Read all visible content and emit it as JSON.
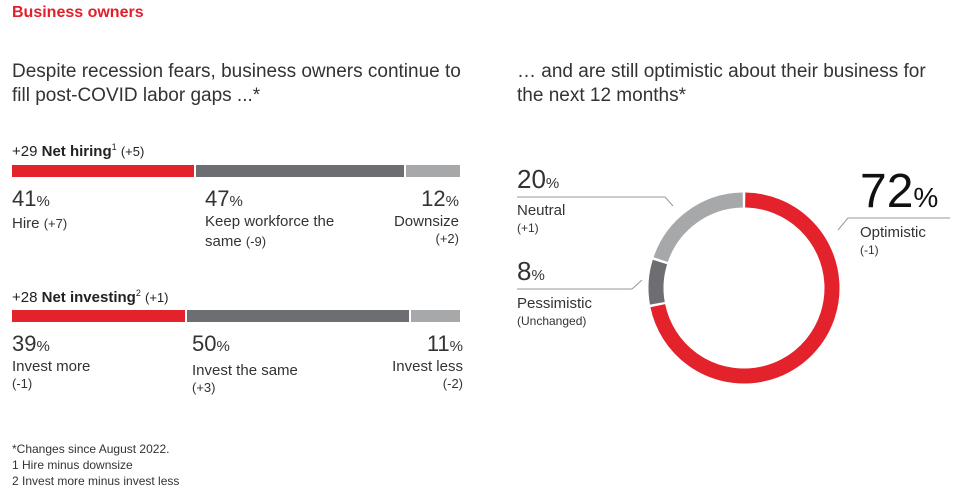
{
  "section_title": "Business owners",
  "left_heading": "Despite recession fears, business owners continue to fill post-COVID labor gaps ...*",
  "right_heading": "… and are still optimistic about their business for the next 12 months*",
  "colors": {
    "red": "#e3222b",
    "dark_gray": "#6d6e71",
    "light_gray": "#a7a8aa"
  },
  "chart_data": [
    {
      "type": "bar",
      "stacked": true,
      "orientation": "horizontal",
      "title_prefix": "+29",
      "title": "Net hiring",
      "title_note": "1",
      "title_change": "(+5)",
      "categories": [
        "Hire",
        "Keep workforce the same",
        "Downsize"
      ],
      "values": [
        41,
        47,
        12
      ],
      "changes": [
        "(+7)",
        "(-9)",
        "(+2)"
      ],
      "labels": [
        "41",
        "47",
        "12"
      ],
      "unit": "%"
    },
    {
      "type": "bar",
      "stacked": true,
      "orientation": "horizontal",
      "title_prefix": "+28",
      "title": "Net investing",
      "title_note": "2",
      "title_change": "(+1)",
      "categories": [
        "Invest more",
        "Invest the same",
        "Invest less"
      ],
      "values": [
        39,
        50,
        11
      ],
      "changes": [
        "(-1)",
        "(+3)",
        "(-2)"
      ],
      "labels": [
        "39",
        "50",
        "11"
      ],
      "unit": "%"
    },
    {
      "type": "pie",
      "donut": true,
      "categories": [
        "Optimistic",
        "Pessimistic",
        "Neutral"
      ],
      "values": [
        72,
        8,
        20
      ],
      "labels": [
        "72",
        "8",
        "20"
      ],
      "changes": [
        "(-1)",
        "(Unchanged)",
        "(+1)"
      ],
      "unit": "%"
    }
  ],
  "footnotes": [
    "*Changes since August 2022.",
    "1 Hire minus downsize",
    "2 Invest more minus invest less"
  ]
}
